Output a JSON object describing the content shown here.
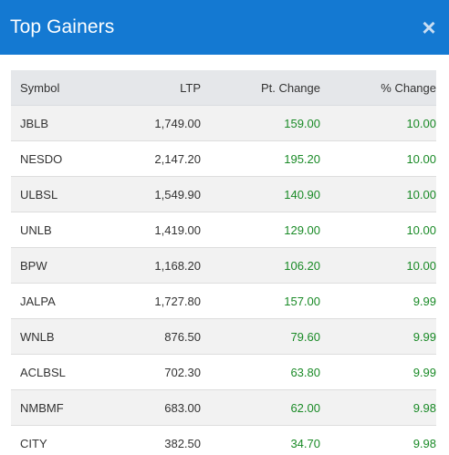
{
  "modal": {
    "title": "Top Gainers",
    "close_symbol": "×"
  },
  "colors": {
    "header_bg": "#1479d2",
    "positive": "#198a26"
  },
  "table": {
    "headers": [
      "Symbol",
      "LTP",
      "Pt. Change",
      "% Change"
    ],
    "rows": [
      [
        "JBLB",
        "1,749.00",
        "159.00",
        "10.00"
      ],
      [
        "NESDO",
        "2,147.20",
        "195.20",
        "10.00"
      ],
      [
        "ULBSL",
        "1,549.90",
        "140.90",
        "10.00"
      ],
      [
        "UNLB",
        "1,419.00",
        "129.00",
        "10.00"
      ],
      [
        "BPW",
        "1,168.20",
        "106.20",
        "10.00"
      ],
      [
        "JALPA",
        "1,727.80",
        "157.00",
        "9.99"
      ],
      [
        "WNLB",
        "876.50",
        "79.60",
        "9.99"
      ],
      [
        "ACLBSL",
        "702.30",
        "63.80",
        "9.99"
      ],
      [
        "NMBMF",
        "683.00",
        "62.00",
        "9.98"
      ],
      [
        "CITY",
        "382.50",
        "34.70",
        "9.98"
      ]
    ]
  }
}
